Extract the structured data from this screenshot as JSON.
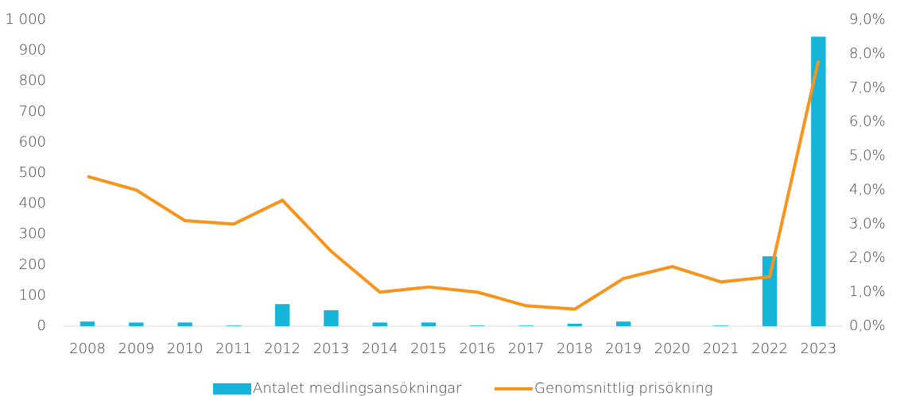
{
  "chart_data": {
    "type": "bar-line",
    "categories": [
      "2008",
      "2009",
      "2010",
      "2011",
      "2012",
      "2013",
      "2014",
      "2015",
      "2016",
      "2017",
      "2018",
      "2019",
      "2020",
      "2021",
      "2022",
      "2023"
    ],
    "series": [
      {
        "name": "Antalet medlingsansökningar",
        "color": "#16b4d8",
        "type": "bar",
        "values": [
          15,
          12,
          12,
          2,
          72,
          52,
          12,
          12,
          2,
          2,
          8,
          15,
          0,
          2,
          228,
          945
        ]
      },
      {
        "name": "Genomsnittlig prisökning",
        "color": "#f7941d",
        "type": "line",
        "axis": "y2",
        "values": [
          4.4,
          4.0,
          3.1,
          3.0,
          3.7,
          2.2,
          1.0,
          1.15,
          1.0,
          0.6,
          0.5,
          1.4,
          1.75,
          1.3,
          1.45,
          7.8
        ]
      }
    ],
    "ylim": [
      0,
      1000
    ],
    "yticks": [
      0,
      100,
      200,
      300,
      400,
      500,
      600,
      700,
      800,
      900,
      {
        "value": 1000,
        "label": "1 000"
      }
    ],
    "y2lim": [
      0,
      9
    ],
    "y2ticks": [
      {
        "value": 0,
        "label": "0,0%"
      },
      {
        "value": 1,
        "label": "1,0%"
      },
      {
        "value": 2,
        "label": "2,0%"
      },
      {
        "value": 3,
        "label": "3,0%"
      },
      {
        "value": 4,
        "label": "4,0%"
      },
      {
        "value": 5,
        "label": "5,0%"
      },
      {
        "value": 6,
        "label": "6,0%"
      },
      {
        "value": 7,
        "label": "7,0%"
      },
      {
        "value": 8,
        "label": "8,0%"
      },
      {
        "value": 9,
        "label": "9,0%"
      }
    ],
    "grid": false,
    "legend": "bottom"
  }
}
